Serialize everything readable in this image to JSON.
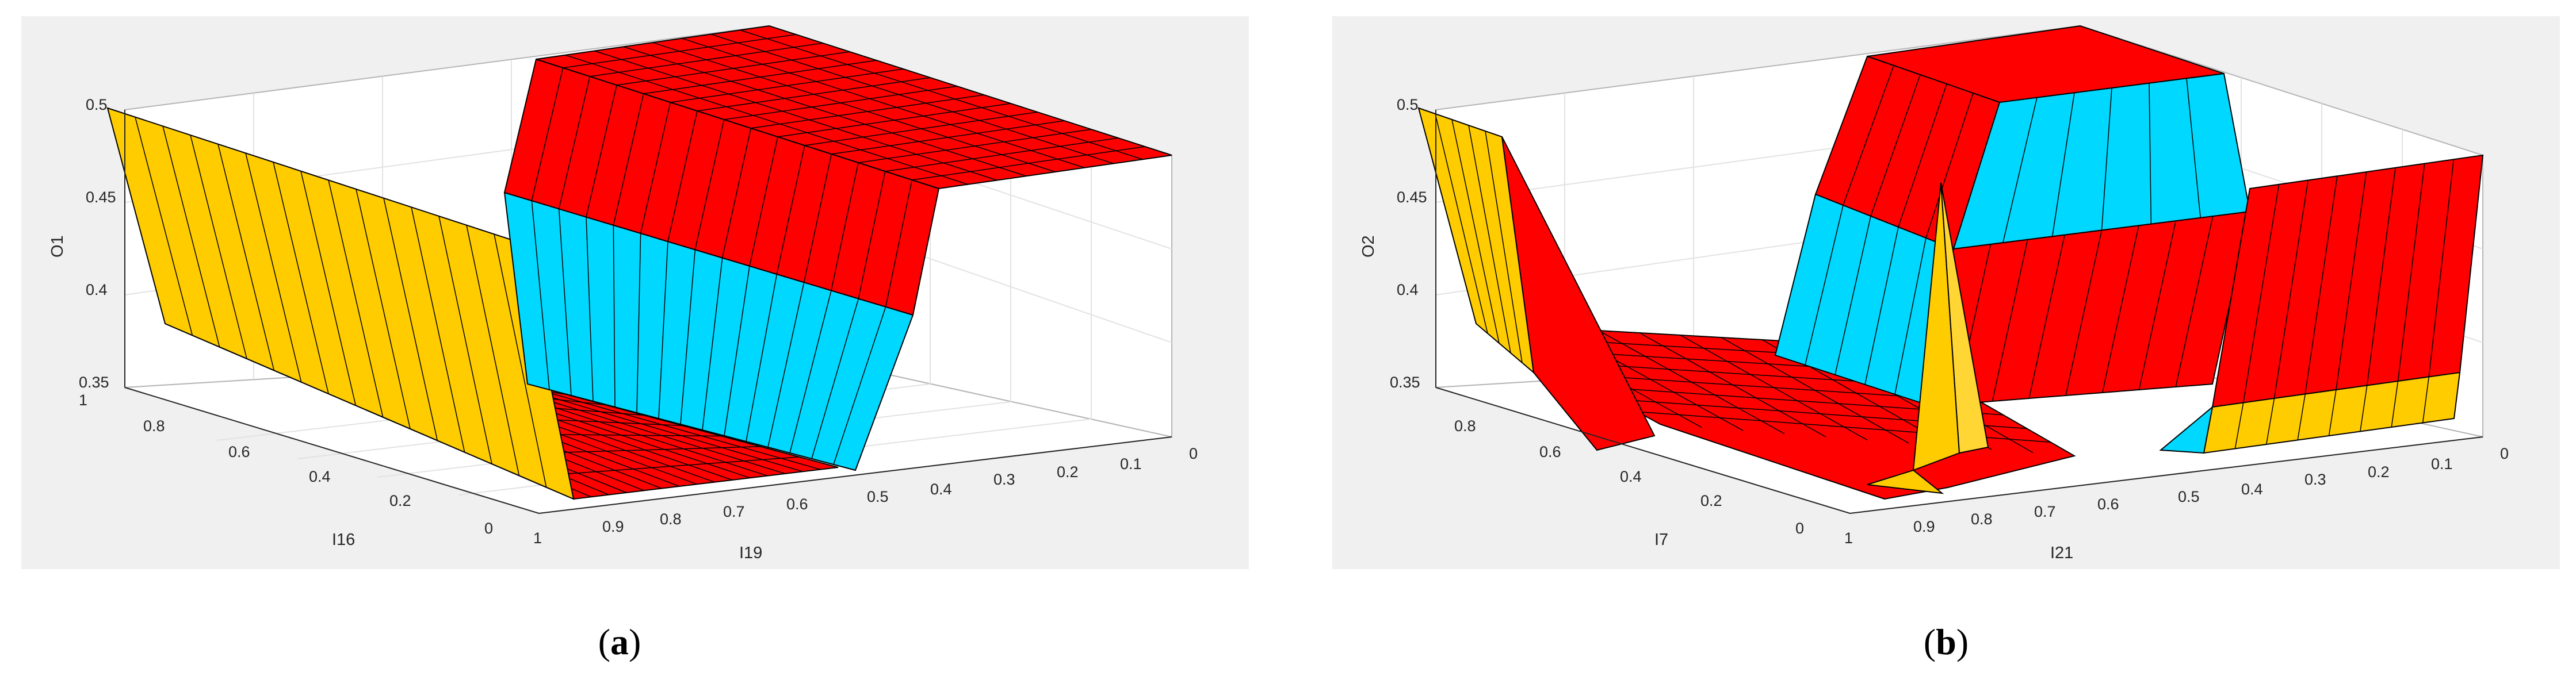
{
  "captions": {
    "a": {
      "open": "(",
      "letter": "a",
      "close": ")"
    },
    "b": {
      "open": "(",
      "letter": "b",
      "close": ")"
    }
  },
  "chart_data": [
    {
      "type": "surface",
      "title": "",
      "xlabel": "I19",
      "ylabel": "I16",
      "zlabel": "O1",
      "x_ticks": [
        "1",
        "0.9",
        "0.8",
        "0.7",
        "0.6",
        "0.5",
        "0.4",
        "0.3",
        "0.2",
        "0.1",
        "0"
      ],
      "y_ticks": [
        "0",
        "0.2",
        "0.4",
        "0.6",
        "0.8",
        "1"
      ],
      "z_ticks": [
        "0.35",
        "0.4",
        "0.45",
        "0.5"
      ],
      "xlim": [
        0,
        1
      ],
      "ylim": [
        0,
        1
      ],
      "zlim": [
        0.35,
        0.5
      ],
      "grid": true,
      "colors": {
        "high": "#ff0000",
        "middle": "#00d6ff",
        "low_edge": "#ffcc00",
        "mesh": "#000000",
        "background": "#f0f0f0"
      },
      "surface": [
        {
          "name": "plateau",
          "color": "red",
          "x_from": 0,
          "x_to": 0.55,
          "y_from": 0,
          "y_to": 1,
          "z": 0.5
        },
        {
          "name": "ramp",
          "color": "red",
          "x_from": 0.55,
          "x_to": 0.6,
          "y_from": 0,
          "y_to": 1,
          "z_from": 0.5,
          "z_to": 0.45
        },
        {
          "name": "step",
          "color": "cyan",
          "x_from": 0.6,
          "x_to": 0.65,
          "y_from": 0,
          "y_to": 1,
          "z_from": 0.45,
          "z_to": 0.35
        },
        {
          "name": "floor",
          "color": "red",
          "x_from": 0.65,
          "x_to": 1,
          "y_from": 0,
          "y_to": 1,
          "z": 0.35
        },
        {
          "name": "edge-wall",
          "color": "yellow",
          "x": 1,
          "y_from": 0,
          "y_to": 1,
          "z_from": 0.35,
          "z_to": 0.5
        }
      ]
    },
    {
      "type": "surface",
      "title": "",
      "xlabel": "I21",
      "ylabel": "I7",
      "zlabel": "O2",
      "x_ticks": [
        "1",
        "0.9",
        "0.8",
        "0.7",
        "0.6",
        "0.5",
        "0.4",
        "0.3",
        "0.2",
        "0.1",
        "0"
      ],
      "y_ticks": [
        "0",
        "0.2",
        "0.4",
        "0.6",
        "0.8"
      ],
      "z_ticks": [
        "0.35",
        "0.4",
        "0.45",
        "0.5"
      ],
      "xlim": [
        0,
        1
      ],
      "ylim": [
        0,
        1
      ],
      "zlim": [
        0.35,
        0.5
      ],
      "grid": true,
      "colors": {
        "high": "#ff0000",
        "middle": "#00d6ff",
        "low_edge": "#ffcc00",
        "mesh": "#000000",
        "background": "#f0f0f0"
      },
      "surface": [
        {
          "name": "back-plateau",
          "color": "red",
          "x_from": 0.55,
          "x_to": 0.7,
          "y_from": 0.6,
          "y_to": 1,
          "z": 0.5
        },
        {
          "name": "cyan-plateau",
          "color": "cyan",
          "x_from": 0.3,
          "x_to": 0.5,
          "y_from": 0.5,
          "y_to": 1,
          "z": 0.5
        },
        {
          "name": "right-wall",
          "color": "red",
          "x_from": 0,
          "x_to": 0.5,
          "y_from": 0,
          "y_to": 0.6,
          "z": 0.45
        },
        {
          "name": "floor",
          "color": "red",
          "x_from": 0.5,
          "x_to": 1,
          "y_from": 0,
          "y_to": 0.5,
          "z": 0.35
        },
        {
          "name": "spike",
          "color": "yellow",
          "x": 0.8,
          "y": 0.1,
          "z": 0.43
        },
        {
          "name": "edge-wall",
          "color": "yellow",
          "x": 1,
          "y_from": 0.8,
          "y_to": 1,
          "z_from": 0.35,
          "z_to": 0.5
        }
      ]
    }
  ]
}
